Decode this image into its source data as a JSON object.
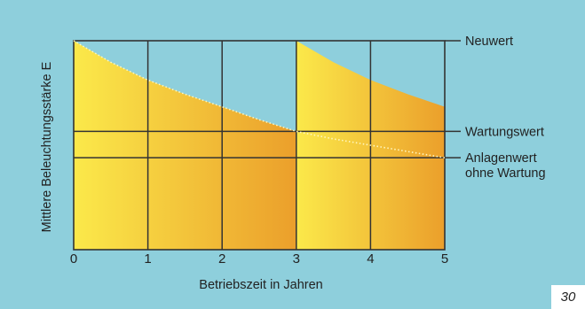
{
  "figure_number": "30",
  "chart_data": {
    "type": "area",
    "xlabel": "Betriebszeit in Jahren",
    "ylabel": "Mittlere Beleuchtungsstärke E",
    "xlim": [
      0,
      5
    ],
    "ylim": [
      0,
      1
    ],
    "x_ticks": [
      "0",
      "1",
      "2",
      "3",
      "4",
      "5"
    ],
    "grid": true,
    "reference_levels": [
      {
        "label": "Neuwert",
        "value": 1.0
      },
      {
        "label": "Wartungswert",
        "value": 0.566
      },
      {
        "label": "Anlagenwert ohne Wartung",
        "value": 0.44
      }
    ],
    "series": [
      {
        "kind": "filled",
        "x": [
          0,
          0.5,
          1,
          1.5,
          2,
          2.5,
          3
        ],
        "y": [
          1.0,
          0.897,
          0.812,
          0.744,
          0.684,
          0.622,
          0.566
        ]
      },
      {
        "kind": "filled",
        "x": [
          3,
          3.5,
          4,
          4.5,
          5
        ],
        "y": [
          1.0,
          0.897,
          0.812,
          0.744,
          0.684
        ]
      },
      {
        "kind": "dotted",
        "x": [
          0,
          0.5,
          1,
          1.5,
          2,
          2.5,
          3,
          3.5,
          4,
          4.5,
          5
        ],
        "y": [
          1.0,
          0.897,
          0.812,
          0.744,
          0.684,
          0.622,
          0.566,
          0.53,
          0.5,
          0.47,
          0.44
        ]
      }
    ],
    "colors": {
      "background": "#8ecfdc",
      "fill_light": "#fbe94a",
      "fill_dark": "#eb9f2b",
      "grid": "#333333",
      "dotted": "#fff7c0"
    }
  }
}
